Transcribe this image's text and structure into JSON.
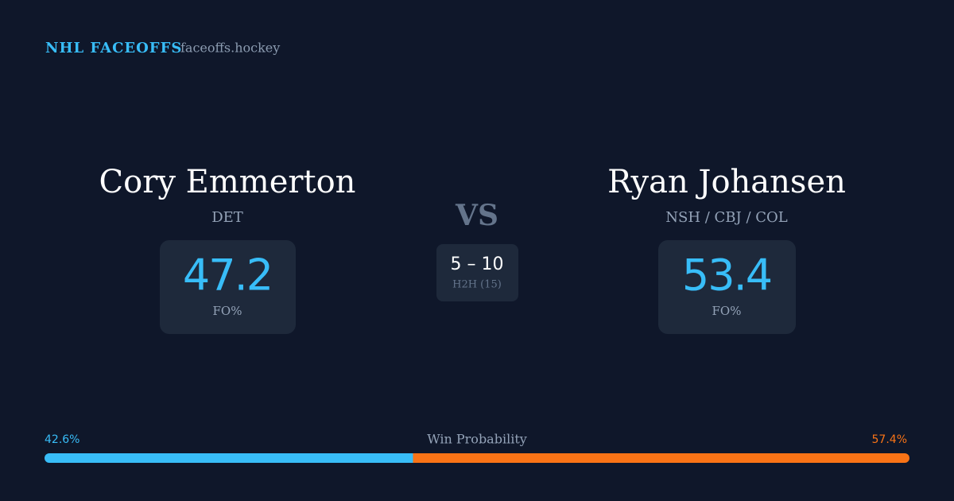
{
  "header": {
    "title": "NHL FACEOFFS",
    "site": "faceoffs.hockey"
  },
  "players": [
    {
      "name": "Cory Emmerton",
      "team": "DET",
      "fo_pct": "47.2",
      "fo_label": "FO%"
    },
    {
      "name": "Ryan Johansen",
      "team": "NSH / CBJ / COL",
      "fo_pct": "53.4",
      "fo_label": "FO%"
    }
  ],
  "versus": {
    "label": "VS",
    "h2h_score": "5 – 10",
    "h2h_label": "H2H (15)"
  },
  "win_probability": {
    "title": "Win Probability",
    "left": {
      "value": 42.6,
      "label": "42.6%",
      "color": "#38bdf8"
    },
    "right": {
      "value": 57.4,
      "label": "57.4%",
      "color": "#f97316"
    }
  }
}
